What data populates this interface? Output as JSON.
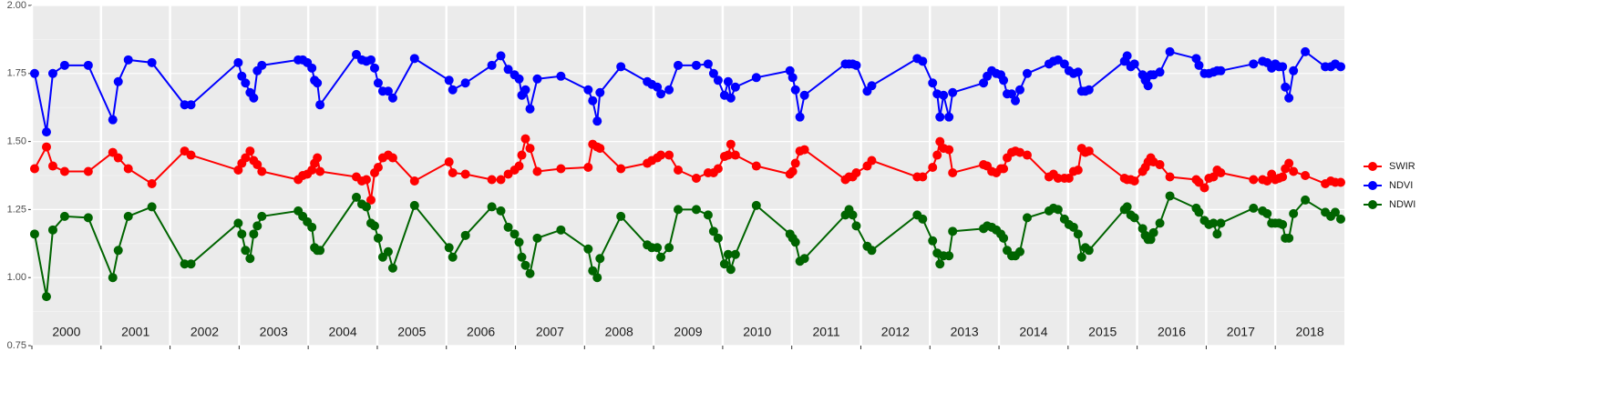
{
  "chart_data": {
    "type": "line",
    "years": [
      2000,
      2001,
      2002,
      2003,
      2004,
      2005,
      2006,
      2007,
      2008,
      2009,
      2010,
      2011,
      2012,
      2013,
      2014,
      2015,
      2016,
      2017,
      2018
    ],
    "x": [
      2000.039,
      2000.211,
      2000.303,
      2000.474,
      2000.816,
      2001.171,
      2001.25,
      2001.395,
      2001.737,
      2002.211,
      2002.303,
      2002.987,
      2003.039,
      2003.092,
      2003.158,
      2003.211,
      2003.263,
      2003.329,
      2003.855,
      2003.921,
      2003.987,
      2004.053,
      2004.092,
      2004.132,
      2004.171,
      2004.697,
      2004.776,
      2004.842,
      2004.908,
      2004.961,
      2005.013,
      2005.079,
      2005.158,
      2005.224,
      2005.539,
      2006.039,
      2006.092,
      2006.276,
      2006.658,
      2006.789,
      2006.895,
      2006.987,
      2007.053,
      2007.092,
      2007.145,
      2007.211,
      2007.316,
      2007.658,
      2008.053,
      2008.118,
      2008.184,
      2008.224,
      2008.526,
      2008.908,
      2008.974,
      2009.053,
      2009.105,
      2009.224,
      2009.355,
      2009.618,
      2009.789,
      2009.868,
      2009.934,
      2010.026,
      2010.079,
      2010.118,
      2010.184,
      2010.487,
      2010.974,
      2011.013,
      2011.053,
      2011.118,
      2011.184,
      2011.776,
      2011.829,
      2011.882,
      2011.934,
      2012.092,
      2012.158,
      2012.816,
      2012.895,
      2013.039,
      2013.105,
      2013.145,
      2013.197,
      2013.276,
      2013.329,
      2013.776,
      2013.829,
      2013.895,
      2013.961,
      2014.026,
      2014.066,
      2014.118,
      2014.184,
      2014.237,
      2014.303,
      2014.408,
      2014.724,
      2014.789,
      2014.855,
      2014.947,
      2015.013,
      2015.079,
      2015.145,
      2015.197,
      2015.25,
      2015.303,
      2015.816,
      2015.855,
      2015.908,
      2015.961,
      2016.079,
      2016.118,
      2016.158,
      2016.197,
      2016.237,
      2016.329,
      2016.474,
      2016.855,
      2016.895,
      2016.974,
      2017.039,
      2017.105,
      2017.158,
      2017.211,
      2017.684,
      2017.816,
      2017.882,
      2017.947,
      2018.0,
      2018.053,
      2018.105,
      2018.145,
      2018.197,
      2018.263,
      2018.434,
      2018.724,
      2018.803,
      2018.868,
      2018.947
    ],
    "series": [
      {
        "name": "SWIR",
        "color": "#ff0000",
        "values": [
          1.4,
          1.48,
          1.41,
          1.39,
          1.39,
          1.46,
          1.44,
          1.4,
          1.345,
          1.465,
          1.45,
          1.395,
          1.42,
          1.44,
          1.465,
          1.43,
          1.415,
          1.39,
          1.36,
          1.375,
          1.38,
          1.395,
          1.42,
          1.44,
          1.39,
          1.37,
          1.355,
          1.36,
          1.285,
          1.385,
          1.405,
          1.44,
          1.45,
          1.44,
          1.355,
          1.425,
          1.385,
          1.38,
          1.36,
          1.36,
          1.38,
          1.395,
          1.41,
          1.45,
          1.51,
          1.475,
          1.39,
          1.4,
          1.405,
          1.49,
          1.48,
          1.475,
          1.4,
          1.42,
          1.43,
          1.44,
          1.45,
          1.45,
          1.395,
          1.365,
          1.385,
          1.385,
          1.4,
          1.445,
          1.45,
          1.49,
          1.45,
          1.41,
          1.38,
          1.39,
          1.42,
          1.465,
          1.47,
          1.36,
          1.37,
          1.37,
          1.385,
          1.41,
          1.43,
          1.37,
          1.37,
          1.405,
          1.45,
          1.5,
          1.475,
          1.47,
          1.385,
          1.415,
          1.41,
          1.39,
          1.385,
          1.4,
          1.4,
          1.44,
          1.46,
          1.465,
          1.46,
          1.45,
          1.37,
          1.38,
          1.365,
          1.365,
          1.365,
          1.39,
          1.395,
          1.475,
          1.46,
          1.465,
          1.365,
          1.36,
          1.36,
          1.355,
          1.39,
          1.405,
          1.425,
          1.44,
          1.425,
          1.415,
          1.37,
          1.36,
          1.35,
          1.33,
          1.365,
          1.37,
          1.395,
          1.385,
          1.36,
          1.36,
          1.355,
          1.38,
          1.36,
          1.365,
          1.37,
          1.4,
          1.42,
          1.39,
          1.375,
          1.345,
          1.355,
          1.35,
          1.35
        ]
      },
      {
        "name": "NDVI",
        "color": "#0000ff",
        "values": [
          1.75,
          1.535,
          1.75,
          1.78,
          1.78,
          1.58,
          1.72,
          1.8,
          1.79,
          1.635,
          1.635,
          1.79,
          1.74,
          1.715,
          1.68,
          1.66,
          1.76,
          1.78,
          1.8,
          1.8,
          1.79,
          1.77,
          1.725,
          1.715,
          1.635,
          1.82,
          1.8,
          1.795,
          1.8,
          1.77,
          1.715,
          1.685,
          1.685,
          1.66,
          1.805,
          1.725,
          1.69,
          1.715,
          1.78,
          1.815,
          1.765,
          1.745,
          1.73,
          1.67,
          1.69,
          1.62,
          1.73,
          1.74,
          1.69,
          1.65,
          1.575,
          1.68,
          1.775,
          1.72,
          1.71,
          1.7,
          1.675,
          1.69,
          1.78,
          1.78,
          1.785,
          1.75,
          1.725,
          1.67,
          1.72,
          1.66,
          1.7,
          1.735,
          1.76,
          1.735,
          1.69,
          1.59,
          1.67,
          1.785,
          1.785,
          1.785,
          1.78,
          1.685,
          1.705,
          1.805,
          1.795,
          1.715,
          1.675,
          1.59,
          1.67,
          1.59,
          1.68,
          1.715,
          1.74,
          1.76,
          1.75,
          1.745,
          1.725,
          1.675,
          1.675,
          1.65,
          1.69,
          1.75,
          1.785,
          1.795,
          1.8,
          1.785,
          1.76,
          1.75,
          1.755,
          1.685,
          1.685,
          1.69,
          1.795,
          1.815,
          1.775,
          1.785,
          1.745,
          1.725,
          1.705,
          1.745,
          1.745,
          1.755,
          1.83,
          1.805,
          1.78,
          1.75,
          1.75,
          1.755,
          1.76,
          1.76,
          1.785,
          1.795,
          1.79,
          1.77,
          1.785,
          1.775,
          1.775,
          1.7,
          1.66,
          1.76,
          1.83,
          1.775,
          1.775,
          1.785,
          1.775
        ]
      },
      {
        "name": "NDWI",
        "color": "#006400",
        "values": [
          1.16,
          0.93,
          1.175,
          1.225,
          1.22,
          1.0,
          1.1,
          1.225,
          1.26,
          1.05,
          1.05,
          1.2,
          1.16,
          1.1,
          1.07,
          1.16,
          1.19,
          1.225,
          1.245,
          1.225,
          1.205,
          1.185,
          1.11,
          1.1,
          1.1,
          1.295,
          1.27,
          1.26,
          1.2,
          1.19,
          1.145,
          1.075,
          1.095,
          1.035,
          1.265,
          1.11,
          1.075,
          1.155,
          1.26,
          1.245,
          1.185,
          1.16,
          1.13,
          1.075,
          1.045,
          1.015,
          1.145,
          1.175,
          1.105,
          1.025,
          1.0,
          1.07,
          1.225,
          1.12,
          1.11,
          1.11,
          1.075,
          1.11,
          1.25,
          1.25,
          1.23,
          1.17,
          1.145,
          1.05,
          1.085,
          1.03,
          1.085,
          1.265,
          1.16,
          1.145,
          1.13,
          1.06,
          1.07,
          1.23,
          1.25,
          1.23,
          1.19,
          1.115,
          1.1,
          1.23,
          1.215,
          1.135,
          1.09,
          1.05,
          1.08,
          1.08,
          1.17,
          1.18,
          1.19,
          1.185,
          1.175,
          1.16,
          1.145,
          1.1,
          1.08,
          1.08,
          1.095,
          1.22,
          1.245,
          1.255,
          1.25,
          1.215,
          1.195,
          1.185,
          1.16,
          1.075,
          1.11,
          1.1,
          1.25,
          1.26,
          1.23,
          1.22,
          1.18,
          1.155,
          1.14,
          1.14,
          1.165,
          1.2,
          1.3,
          1.255,
          1.24,
          1.21,
          1.195,
          1.2,
          1.16,
          1.2,
          1.255,
          1.245,
          1.235,
          1.2,
          1.2,
          1.2,
          1.195,
          1.145,
          1.145,
          1.235,
          1.285,
          1.24,
          1.225,
          1.24,
          1.215
        ]
      }
    ],
    "xlim": [
      2000,
      2019
    ],
    "ylim": [
      0.75,
      2.0
    ],
    "yticks": [
      0.75,
      {
        "value": 1,
        "label": "1.00"
      },
      1.25,
      {
        "value": 1.5,
        "label": "1.50"
      },
      1.75,
      {
        "value": 2,
        "label": "2.00"
      }
    ],
    "grid": true,
    "legend": "right"
  }
}
